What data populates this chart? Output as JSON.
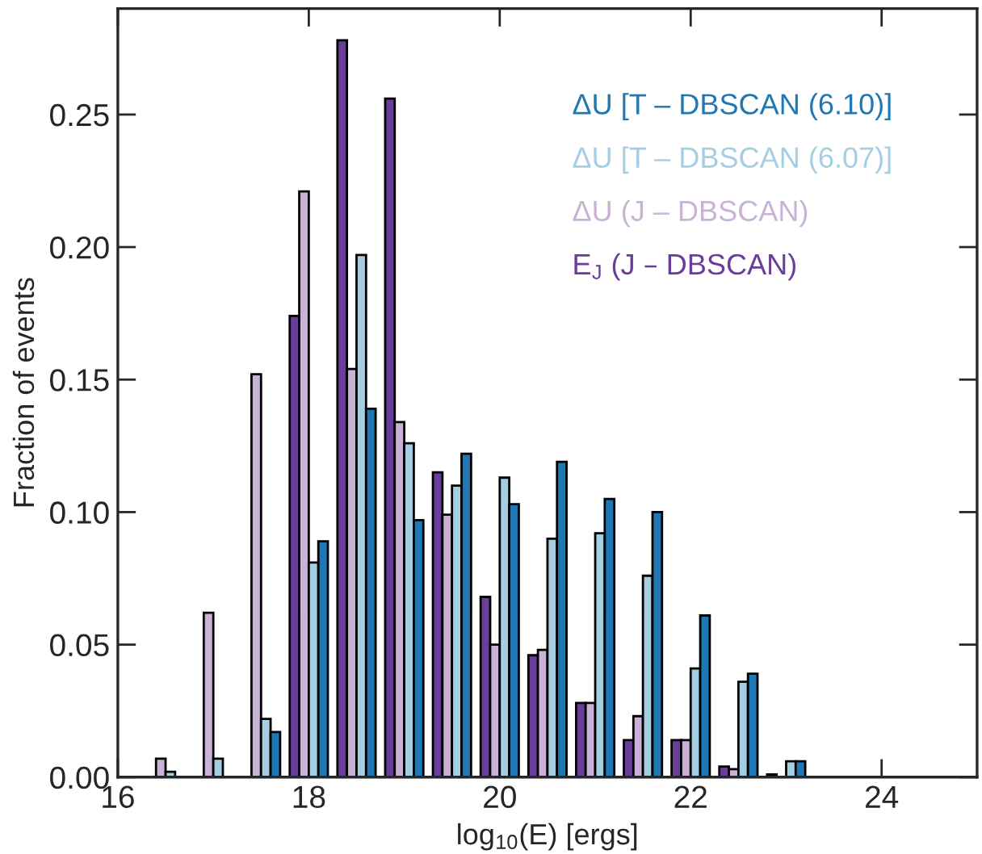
{
  "chart_data": {
    "type": "bar",
    "xlabel": "log$_{10}$(E) [ergs]",
    "ylabel": "Fraction of events",
    "x": [
      16.5,
      17.0,
      17.5,
      18.0,
      18.5,
      19.0,
      19.5,
      20.0,
      20.5,
      21.0,
      21.5,
      22.0,
      22.5,
      23.0
    ],
    "series": [
      {
        "name": "E$_{J}$ (J – DBSCAN)",
        "color": "#6a3d9a",
        "values": [
          0,
          0,
          0,
          0.174,
          0.278,
          0.256,
          0.115,
          0.068,
          0.046,
          0.028,
          0.014,
          0.014,
          0.004,
          0.001
        ]
      },
      {
        "name": "ΔU (J – DBSCAN)",
        "color": "#cab2d6",
        "values": [
          0.007,
          0.062,
          0.152,
          0.221,
          0.154,
          0.134,
          0.099,
          0.05,
          0.048,
          0.028,
          0.023,
          0.014,
          0.003,
          0
        ]
      },
      {
        "name": "ΔU [T – DBSCAN (6.07)]",
        "color": "#a6cee3",
        "values": [
          0.002,
          0.007,
          0.022,
          0.081,
          0.197,
          0.126,
          0.11,
          0.113,
          0.09,
          0.092,
          0.076,
          0.041,
          0.036,
          0.006
        ]
      },
      {
        "name": "ΔU [T – DBSCAN (6.10)]",
        "color": "#1f78b4",
        "values": [
          0,
          0,
          0.017,
          0.089,
          0.139,
          0.097,
          0.122,
          0.103,
          0.119,
          0.105,
          0.1,
          0.061,
          0.039,
          0.006
        ]
      }
    ],
    "xlim": [
      16,
      25
    ],
    "xticks": [
      16,
      18,
      20,
      22,
      24
    ],
    "ylim": [
      0,
      0.29
    ],
    "yticks": [
      {
        "value": 0,
        "label": "0.00"
      },
      {
        "value": 0.05,
        "label": "0.05"
      },
      {
        "value": 0.1,
        "label": "0.10"
      },
      {
        "value": 0.15,
        "label": "0.15"
      },
      {
        "value": 0.2,
        "label": "0.20"
      },
      {
        "value": 0.25,
        "label": "0.25"
      }
    ],
    "legend": "top right",
    "grid": false
  }
}
